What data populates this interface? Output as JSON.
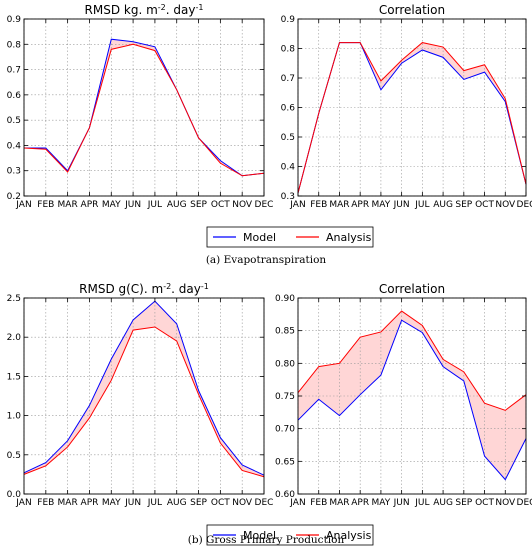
{
  "chart_data": [
    {
      "type": "line",
      "title": "RMSD kg. m-2. day-1",
      "categories": [
        "JAN",
        "FEB",
        "MAR",
        "APR",
        "MAY",
        "JUN",
        "JUL",
        "AUG",
        "SEP",
        "OCT",
        "NOV",
        "DEC"
      ],
      "ylim": [
        0.2,
        0.9
      ],
      "yticks": [
        "0.2",
        "0.3",
        "0.4",
        "0.5",
        "0.6",
        "0.7",
        "0.8",
        "0.9"
      ],
      "grid": true,
      "fill_between": true,
      "series": [
        {
          "name": "Model",
          "color": "#0000ff",
          "values": [
            0.39,
            0.39,
            0.3,
            0.47,
            0.82,
            0.81,
            0.79,
            0.62,
            0.43,
            0.34,
            0.28,
            0.29
          ]
        },
        {
          "name": "Analysis",
          "color": "#ff0000",
          "values": [
            0.39,
            0.385,
            0.295,
            0.47,
            0.78,
            0.8,
            0.775,
            0.62,
            0.43,
            0.33,
            0.28,
            0.29
          ]
        }
      ]
    },
    {
      "type": "line",
      "title": "Correlation",
      "categories": [
        "JAN",
        "FEB",
        "MAR",
        "APR",
        "MAY",
        "JUN",
        "JUL",
        "AUG",
        "SEP",
        "OCT",
        "NOV",
        "DEC"
      ],
      "ylim": [
        0.3,
        0.9
      ],
      "yticks": [
        "0.3",
        "0.4",
        "0.5",
        "0.6",
        "0.7",
        "0.8",
        "0.9"
      ],
      "grid": true,
      "fill_between": true,
      "series": [
        {
          "name": "Model",
          "color": "#0000ff",
          "values": [
            0.31,
            0.58,
            0.82,
            0.82,
            0.66,
            0.75,
            0.795,
            0.77,
            0.695,
            0.72,
            0.62,
            0.34
          ]
        },
        {
          "name": "Analysis",
          "color": "#ff0000",
          "values": [
            0.31,
            0.58,
            0.82,
            0.82,
            0.69,
            0.76,
            0.82,
            0.805,
            0.725,
            0.745,
            0.63,
            0.34
          ]
        }
      ]
    },
    {
      "type": "line",
      "title": "RMSD g(C). m-2. day-1",
      "categories": [
        "JAN",
        "FEB",
        "MAR",
        "APR",
        "MAY",
        "JUN",
        "JUL",
        "AUG",
        "SEP",
        "OCT",
        "NOV",
        "DEC"
      ],
      "ylim": [
        0.0,
        2.5
      ],
      "yticks": [
        "0.0",
        "0.5",
        "1.0",
        "1.5",
        "2.0",
        "2.5"
      ],
      "grid": true,
      "fill_between": true,
      "series": [
        {
          "name": "Model",
          "color": "#0000ff",
          "values": [
            0.27,
            0.4,
            0.68,
            1.13,
            1.72,
            2.22,
            2.46,
            2.17,
            1.32,
            0.72,
            0.37,
            0.24
          ]
        },
        {
          "name": "Analysis",
          "color": "#ff0000",
          "values": [
            0.25,
            0.36,
            0.6,
            0.97,
            1.45,
            2.09,
            2.13,
            1.95,
            1.27,
            0.65,
            0.3,
            0.22
          ]
        }
      ]
    },
    {
      "type": "line",
      "title": "Correlation",
      "categories": [
        "JAN",
        "FEB",
        "MAR",
        "APR",
        "MAY",
        "JUN",
        "JUL",
        "AUG",
        "SEP",
        "OCT",
        "NOV",
        "DEC"
      ],
      "ylim": [
        0.6,
        0.9
      ],
      "yticks": [
        "0.60",
        "0.65",
        "0.70",
        "0.75",
        "0.80",
        "0.85",
        "0.90"
      ],
      "grid": true,
      "fill_between": true,
      "series": [
        {
          "name": "Model",
          "color": "#0000ff",
          "values": [
            0.713,
            0.745,
            0.72,
            0.752,
            0.782,
            0.866,
            0.847,
            0.795,
            0.773,
            0.658,
            0.622,
            0.685
          ]
        },
        {
          "name": "Analysis",
          "color": "#ff0000",
          "values": [
            0.755,
            0.795,
            0.8,
            0.84,
            0.848,
            0.88,
            0.858,
            0.806,
            0.787,
            0.739,
            0.728,
            0.752
          ]
        }
      ]
    }
  ],
  "legends": [
    {
      "items": [
        {
          "label": "Model",
          "color": "#0000ff"
        },
        {
          "label": "Analysis",
          "color": "#ff0000"
        }
      ]
    },
    {
      "items": [
        {
          "label": "Model",
          "color": "#0000ff"
        },
        {
          "label": "Analysis",
          "color": "#ff0000"
        }
      ]
    }
  ],
  "captions": [
    "(a) Evapotranspiration",
    "(b) Gross Primary Production"
  ],
  "fill_color": "#ffd6d6"
}
